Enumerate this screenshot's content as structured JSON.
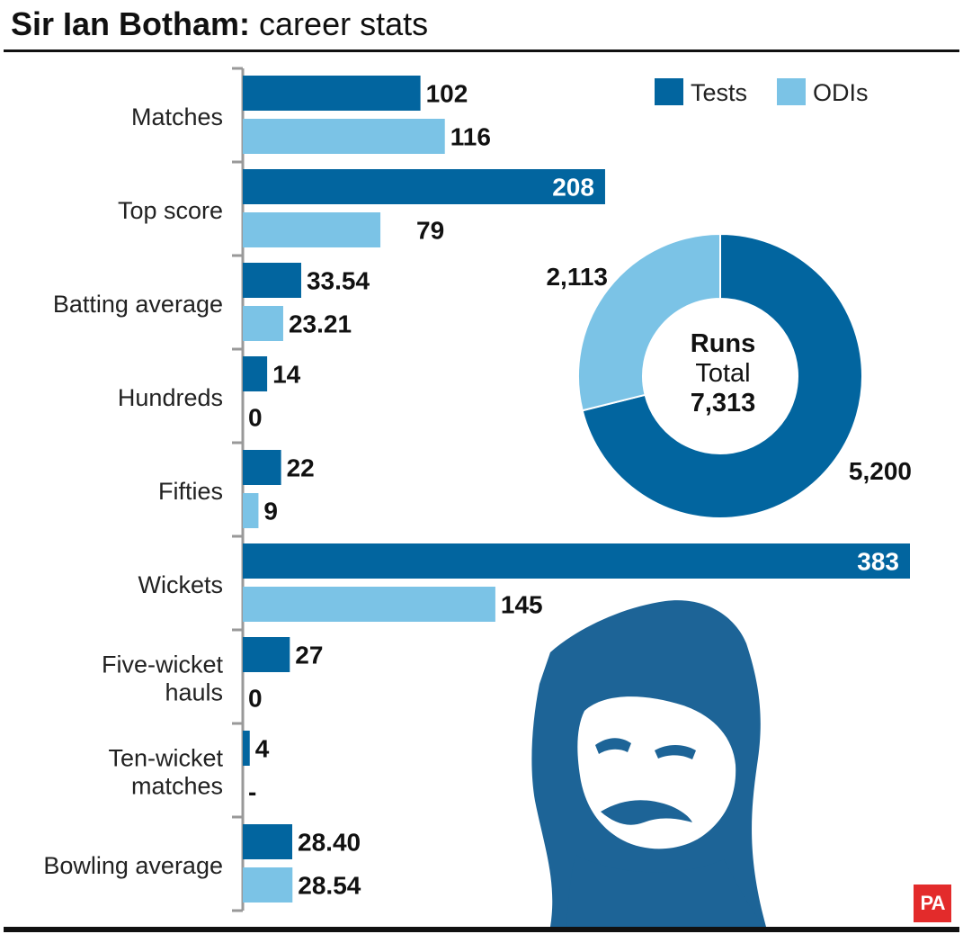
{
  "header": {
    "title_bold": "Sir Ian Botham:",
    "title_light": " career stats"
  },
  "colors": {
    "tests": "#02659f",
    "odis": "#7bc3e6",
    "axis": "#999999",
    "portrait": "#1d6497"
  },
  "logo": {
    "text": "PA",
    "icon": "pa-logo-icon",
    "color": "#e32b2b"
  },
  "portrait": {
    "icon": "portrait-illustration"
  },
  "chart_data": [
    {
      "type": "bar",
      "orientation": "horizontal",
      "categories": [
        "Matches",
        "Top score",
        "Batting average",
        "Hundreds",
        "Fifties",
        "Wickets",
        "Five-wicket\nhauls",
        "Ten-wicket\nmatches",
        "Bowling average"
      ],
      "series": [
        {
          "name": "Tests",
          "values": [
            102,
            208,
            33.54,
            14,
            22,
            383,
            27,
            4,
            28.4
          ],
          "labels": [
            "102",
            "208",
            "33.54",
            "14",
            "22",
            "383",
            "27",
            "4",
            "28.40"
          ]
        },
        {
          "name": "ODIs",
          "values": [
            116,
            79,
            23.21,
            0,
            9,
            145,
            0,
            null,
            28.54
          ],
          "labels": [
            "116",
            "79",
            "23.21",
            "0",
            "9",
            "145",
            "0",
            "-",
            "28.54"
          ]
        }
      ],
      "legend_position": "top-right",
      "grid": false
    },
    {
      "type": "pie",
      "variant": "donut",
      "center_title": "Runs",
      "center_subtitle": "Total",
      "center_value": "7,313",
      "slices": [
        {
          "name": "Tests",
          "value": 5200,
          "label": "5,200"
        },
        {
          "name": "ODIs",
          "value": 2113,
          "label": "2,113"
        }
      ]
    }
  ]
}
